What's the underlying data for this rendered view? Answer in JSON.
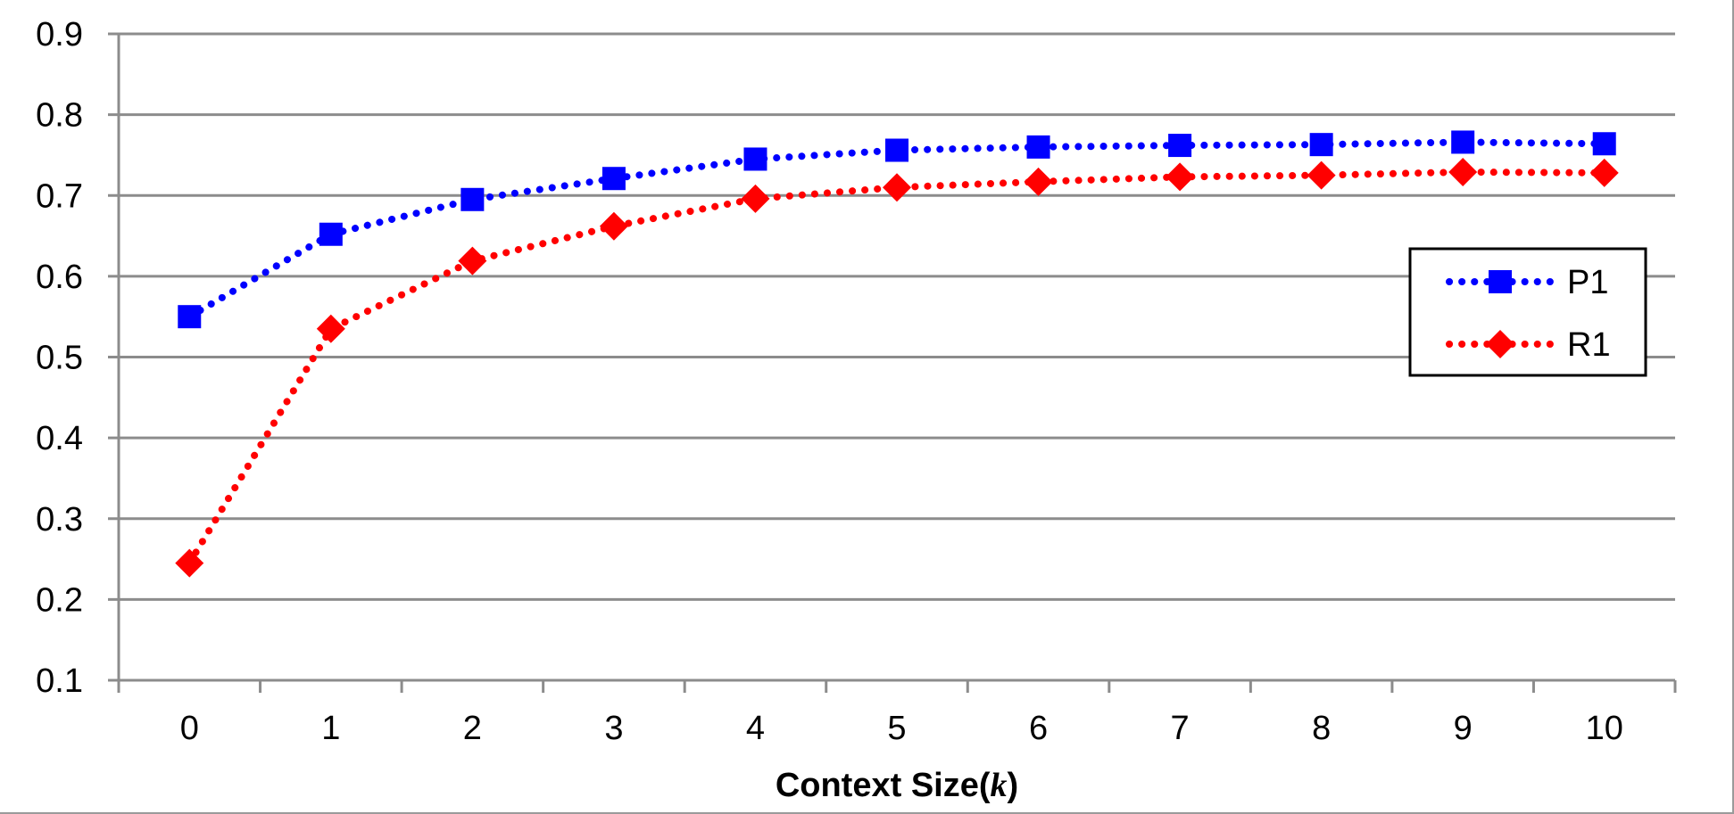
{
  "chart_data": {
    "type": "line",
    "title": "",
    "xlabel_prefix": "Context Size(",
    "xlabel_var": "k",
    "xlabel_suffix": ")",
    "ylabel": "",
    "x": [
      0,
      1,
      2,
      3,
      4,
      5,
      6,
      7,
      8,
      9,
      10
    ],
    "x_tick_labels": [
      "0",
      "1",
      "2",
      "3",
      "4",
      "5",
      "6",
      "7",
      "8",
      "9",
      "10"
    ],
    "ylim": [
      0.1,
      0.9
    ],
    "y_ticks": [
      0.1,
      0.2,
      0.3,
      0.4,
      0.5,
      0.6,
      0.7,
      0.8,
      0.9
    ],
    "y_tick_labels": [
      "0.1",
      "0.2",
      "0.3",
      "0.4",
      "0.5",
      "0.6",
      "0.7",
      "0.8",
      "0.9"
    ],
    "grid": "horizontal",
    "legend_position": "right",
    "series": [
      {
        "name": "P1",
        "color": "#0000ff",
        "marker": "square",
        "line_style": "dotted",
        "values": [
          0.55,
          0.652,
          0.695,
          0.721,
          0.745,
          0.756,
          0.76,
          0.762,
          0.763,
          0.766,
          0.764
        ]
      },
      {
        "name": "R1",
        "color": "#ff0000",
        "marker": "diamond",
        "line_style": "dotted",
        "values": [
          0.245,
          0.535,
          0.619,
          0.662,
          0.696,
          0.71,
          0.717,
          0.723,
          0.725,
          0.729,
          0.728
        ]
      }
    ]
  }
}
